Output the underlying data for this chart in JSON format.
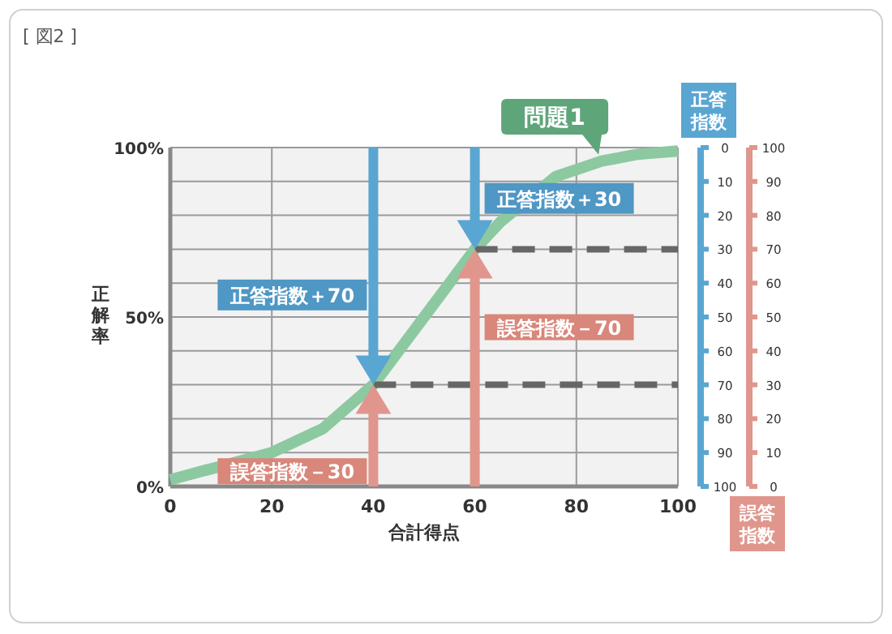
{
  "chart_data": {
    "type": "line",
    "title": "[ 図2 ]",
    "xlabel": "合計得点",
    "ylabel": "正解率",
    "y2label": "正答指数",
    "y3label": "誤答指数",
    "series": [
      {
        "name": "問題1",
        "color": "#8cc9a0",
        "x": [
          0,
          20,
          30,
          40,
          50,
          60,
          65,
          76,
          85,
          92,
          100
        ],
        "values": [
          2,
          10,
          17,
          30,
          50,
          70,
          78,
          91.5,
          96,
          98,
          99
        ]
      },
      {
        "x": [
          40,
          100
        ],
        "values": [
          30,
          30
        ],
        "color": "#666666",
        "line_style": "dashed"
      },
      {
        "x": [
          60,
          100
        ],
        "values": [
          70,
          70
        ],
        "color": "#666666",
        "line_style": "dashed"
      }
    ],
    "xlim": [
      0,
      100
    ],
    "xticks": [
      0,
      20,
      40,
      60,
      80,
      100
    ],
    "ylim": [
      0,
      100
    ],
    "yticks": [
      {
        "value": 0,
        "label": "0%"
      },
      {
        "value": 10,
        "label": null
      },
      {
        "value": 20,
        "label": null
      },
      {
        "value": 30,
        "label": null
      },
      {
        "value": 40,
        "label": null
      },
      {
        "value": 50,
        "label": "50%"
      },
      {
        "value": 60,
        "label": null
      },
      {
        "value": 70,
        "label": null
      },
      {
        "value": 80,
        "label": null
      },
      {
        "value": 90,
        "label": null
      },
      {
        "value": 100,
        "label": "100%"
      }
    ],
    "y2lim": [
      100,
      0
    ],
    "y2ticks": [
      0,
      10,
      20,
      30,
      40,
      50,
      60,
      70,
      80,
      90,
      100
    ],
    "y3lim": [
      0,
      100
    ],
    "y3ticks": [
      0,
      10,
      20,
      30,
      40,
      50,
      60,
      70,
      80,
      90,
      100
    ],
    "grid": true,
    "annotations": [
      "正答指数＋70",
      "誤答指数－30",
      "正答指数＋30",
      "誤答指数－70"
    ]
  }
}
